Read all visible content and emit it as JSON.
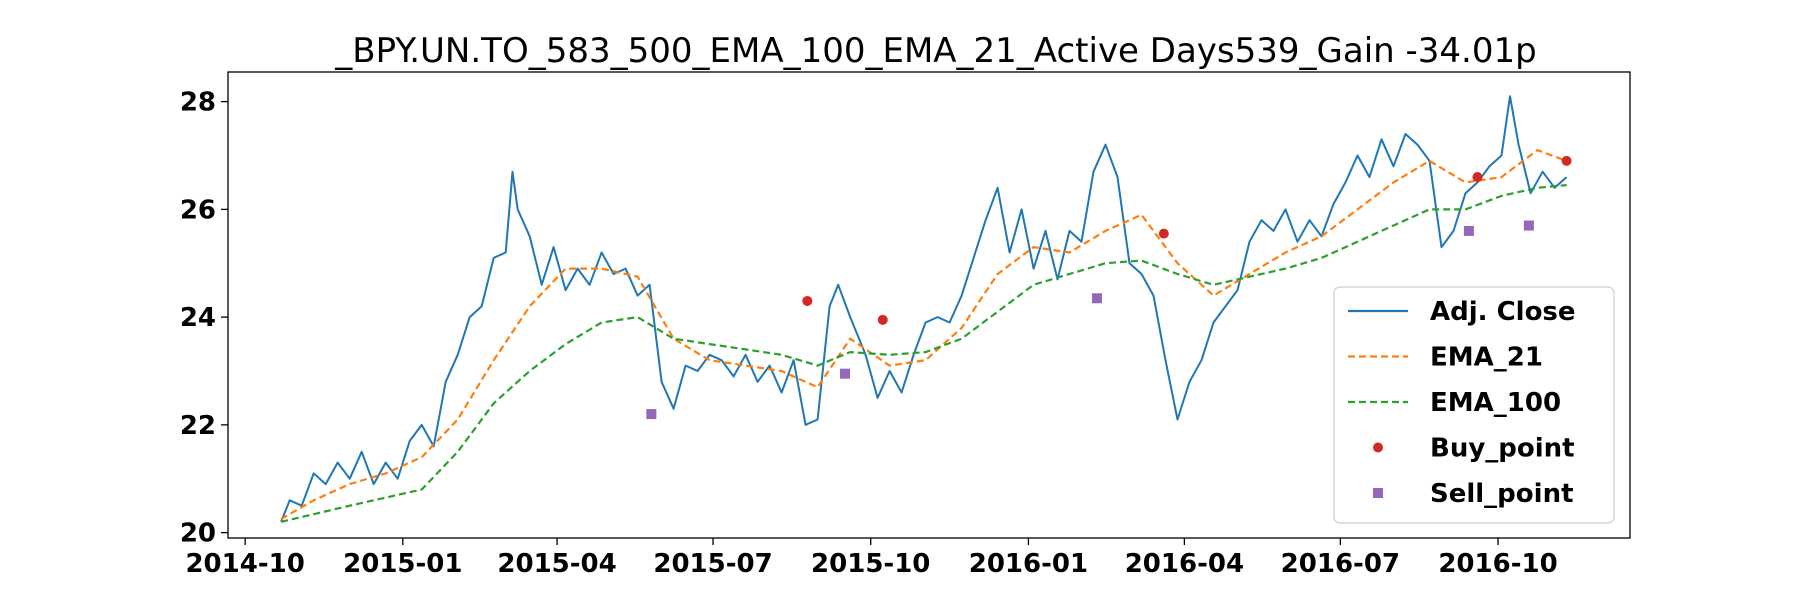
{
  "chart_data": {
    "type": "line",
    "title": "_BPY.UN.TO_583_500_EMA_100_EMA_21_Active Days539_Gain -34.01p",
    "xlabel": "",
    "ylabel": "",
    "x_axis": {
      "type": "date",
      "range": [
        "2014-09-21",
        "2016-12-17"
      ],
      "ticks": [
        {
          "date": "2014-10-01",
          "label": "2014-10"
        },
        {
          "date": "2015-01-01",
          "label": "2015-01"
        },
        {
          "date": "2015-04-01",
          "label": "2015-04"
        },
        {
          "date": "2015-07-01",
          "label": "2015-07"
        },
        {
          "date": "2015-10-01",
          "label": "2015-10"
        },
        {
          "date": "2016-01-01",
          "label": "2016-01"
        },
        {
          "date": "2016-04-01",
          "label": "2016-04"
        },
        {
          "date": "2016-07-01",
          "label": "2016-07"
        },
        {
          "date": "2016-10-01",
          "label": "2016-10"
        }
      ]
    },
    "y_axis": {
      "range": [
        19.9,
        28.55
      ],
      "ticks": [
        20,
        22,
        24,
        26,
        28
      ]
    },
    "grid": false,
    "legend": {
      "placement": "lower-right"
    },
    "series": [
      {
        "name": "Adj. Close",
        "color": "#1f77b4",
        "style": "solid",
        "points": [
          [
            "2014-10-22",
            20.2
          ],
          [
            "2014-10-27",
            20.6
          ],
          [
            "2014-11-03",
            20.5
          ],
          [
            "2014-11-10",
            21.1
          ],
          [
            "2014-11-17",
            20.9
          ],
          [
            "2014-11-24",
            21.3
          ],
          [
            "2014-12-01",
            21.0
          ],
          [
            "2014-12-08",
            21.5
          ],
          [
            "2014-12-15",
            20.9
          ],
          [
            "2014-12-22",
            21.3
          ],
          [
            "2014-12-29",
            21.0
          ],
          [
            "2015-01-05",
            21.7
          ],
          [
            "2015-01-12",
            22.0
          ],
          [
            "2015-01-19",
            21.6
          ],
          [
            "2015-01-26",
            22.8
          ],
          [
            "2015-02-02",
            23.3
          ],
          [
            "2015-02-09",
            24.0
          ],
          [
            "2015-02-16",
            24.2
          ],
          [
            "2015-02-23",
            25.1
          ],
          [
            "2015-03-02",
            25.2
          ],
          [
            "2015-03-06",
            26.7
          ],
          [
            "2015-03-09",
            26.0
          ],
          [
            "2015-03-16",
            25.5
          ],
          [
            "2015-03-23",
            24.6
          ],
          [
            "2015-03-30",
            25.3
          ],
          [
            "2015-04-06",
            24.5
          ],
          [
            "2015-04-13",
            24.9
          ],
          [
            "2015-04-20",
            24.6
          ],
          [
            "2015-04-27",
            25.2
          ],
          [
            "2015-05-04",
            24.8
          ],
          [
            "2015-05-11",
            24.9
          ],
          [
            "2015-05-18",
            24.4
          ],
          [
            "2015-05-25",
            24.6
          ],
          [
            "2015-06-01",
            22.8
          ],
          [
            "2015-06-08",
            22.3
          ],
          [
            "2015-06-15",
            23.1
          ],
          [
            "2015-06-22",
            23.0
          ],
          [
            "2015-06-29",
            23.3
          ],
          [
            "2015-07-06",
            23.2
          ],
          [
            "2015-07-13",
            22.9
          ],
          [
            "2015-07-20",
            23.3
          ],
          [
            "2015-07-27",
            22.8
          ],
          [
            "2015-08-03",
            23.1
          ],
          [
            "2015-08-10",
            22.6
          ],
          [
            "2015-08-17",
            23.2
          ],
          [
            "2015-08-24",
            22.0
          ],
          [
            "2015-08-31",
            22.1
          ],
          [
            "2015-09-07",
            24.2
          ],
          [
            "2015-09-12",
            24.6
          ],
          [
            "2015-09-19",
            24.0
          ],
          [
            "2015-09-28",
            23.3
          ],
          [
            "2015-10-05",
            22.5
          ],
          [
            "2015-10-12",
            23.0
          ],
          [
            "2015-10-19",
            22.6
          ],
          [
            "2015-10-26",
            23.3
          ],
          [
            "2015-11-02",
            23.9
          ],
          [
            "2015-11-09",
            24.0
          ],
          [
            "2015-11-16",
            23.9
          ],
          [
            "2015-11-23",
            24.4
          ],
          [
            "2015-11-30",
            25.1
          ],
          [
            "2015-12-07",
            25.8
          ],
          [
            "2015-12-14",
            26.4
          ],
          [
            "2015-12-21",
            25.2
          ],
          [
            "2015-12-28",
            26.0
          ],
          [
            "2016-01-04",
            24.9
          ],
          [
            "2016-01-11",
            25.6
          ],
          [
            "2016-01-18",
            24.7
          ],
          [
            "2016-01-25",
            25.6
          ],
          [
            "2016-02-01",
            25.4
          ],
          [
            "2016-02-08",
            26.7
          ],
          [
            "2016-02-15",
            27.2
          ],
          [
            "2016-02-22",
            26.6
          ],
          [
            "2016-02-29",
            25.0
          ],
          [
            "2016-03-07",
            24.8
          ],
          [
            "2016-03-14",
            24.4
          ],
          [
            "2016-03-21",
            23.2
          ],
          [
            "2016-03-28",
            22.1
          ],
          [
            "2016-04-04",
            22.8
          ],
          [
            "2016-04-11",
            23.2
          ],
          [
            "2016-04-18",
            23.9
          ],
          [
            "2016-04-25",
            24.2
          ],
          [
            "2016-05-02",
            24.5
          ],
          [
            "2016-05-09",
            25.4
          ],
          [
            "2016-05-16",
            25.8
          ],
          [
            "2016-05-23",
            25.6
          ],
          [
            "2016-05-30",
            26.0
          ],
          [
            "2016-06-06",
            25.4
          ],
          [
            "2016-06-13",
            25.8
          ],
          [
            "2016-06-20",
            25.5
          ],
          [
            "2016-06-27",
            26.1
          ],
          [
            "2016-07-04",
            26.5
          ],
          [
            "2016-07-11",
            27.0
          ],
          [
            "2016-07-18",
            26.6
          ],
          [
            "2016-07-25",
            27.3
          ],
          [
            "2016-08-01",
            26.8
          ],
          [
            "2016-08-08",
            27.4
          ],
          [
            "2016-08-15",
            27.2
          ],
          [
            "2016-08-22",
            26.9
          ],
          [
            "2016-08-29",
            25.3
          ],
          [
            "2016-09-05",
            25.6
          ],
          [
            "2016-09-12",
            26.3
          ],
          [
            "2016-09-19",
            26.5
          ],
          [
            "2016-09-26",
            26.8
          ],
          [
            "2016-10-03",
            27.0
          ],
          [
            "2016-10-08",
            28.1
          ],
          [
            "2016-10-13",
            27.2
          ],
          [
            "2016-10-20",
            26.3
          ],
          [
            "2016-10-27",
            26.7
          ],
          [
            "2016-11-03",
            26.4
          ],
          [
            "2016-11-10",
            26.6
          ]
        ]
      },
      {
        "name": "EMA_21",
        "color": "#ff7f0e",
        "style": "dashed",
        "points": [
          [
            "2014-10-22",
            20.25
          ],
          [
            "2014-11-10",
            20.6
          ],
          [
            "2014-12-01",
            20.9
          ],
          [
            "2014-12-22",
            21.1
          ],
          [
            "2015-01-12",
            21.4
          ],
          [
            "2015-02-02",
            22.1
          ],
          [
            "2015-02-23",
            23.2
          ],
          [
            "2015-03-16",
            24.2
          ],
          [
            "2015-04-06",
            24.9
          ],
          [
            "2015-04-27",
            24.9
          ],
          [
            "2015-05-18",
            24.75
          ],
          [
            "2015-06-08",
            23.6
          ],
          [
            "2015-06-29",
            23.2
          ],
          [
            "2015-07-20",
            23.1
          ],
          [
            "2015-08-10",
            23.0
          ],
          [
            "2015-08-31",
            22.7
          ],
          [
            "2015-09-19",
            23.6
          ],
          [
            "2015-10-12",
            23.1
          ],
          [
            "2015-11-02",
            23.2
          ],
          [
            "2015-11-23",
            23.8
          ],
          [
            "2015-12-14",
            24.8
          ],
          [
            "2016-01-04",
            25.3
          ],
          [
            "2016-01-25",
            25.2
          ],
          [
            "2016-02-15",
            25.6
          ],
          [
            "2016-03-07",
            25.9
          ],
          [
            "2016-03-28",
            25.0
          ],
          [
            "2016-04-18",
            24.4
          ],
          [
            "2016-05-09",
            24.8
          ],
          [
            "2016-05-30",
            25.2
          ],
          [
            "2016-06-20",
            25.5
          ],
          [
            "2016-07-11",
            26.0
          ],
          [
            "2016-08-01",
            26.5
          ],
          [
            "2016-08-22",
            26.9
          ],
          [
            "2016-09-12",
            26.5
          ],
          [
            "2016-10-03",
            26.6
          ],
          [
            "2016-10-24",
            27.1
          ],
          [
            "2016-11-10",
            26.9
          ]
        ]
      },
      {
        "name": "EMA_100",
        "color": "#2ca02c",
        "style": "dashed",
        "points": [
          [
            "2014-10-22",
            20.2
          ],
          [
            "2014-12-01",
            20.5
          ],
          [
            "2015-01-12",
            20.8
          ],
          [
            "2015-02-02",
            21.5
          ],
          [
            "2015-02-23",
            22.4
          ],
          [
            "2015-03-16",
            23.0
          ],
          [
            "2015-04-06",
            23.5
          ],
          [
            "2015-04-27",
            23.9
          ],
          [
            "2015-05-18",
            24.0
          ],
          [
            "2015-06-08",
            23.6
          ],
          [
            "2015-06-29",
            23.5
          ],
          [
            "2015-07-20",
            23.4
          ],
          [
            "2015-08-10",
            23.3
          ],
          [
            "2015-08-31",
            23.1
          ],
          [
            "2015-09-19",
            23.35
          ],
          [
            "2015-10-12",
            23.3
          ],
          [
            "2015-11-02",
            23.35
          ],
          [
            "2015-11-23",
            23.6
          ],
          [
            "2015-12-14",
            24.1
          ],
          [
            "2016-01-04",
            24.6
          ],
          [
            "2016-01-25",
            24.8
          ],
          [
            "2016-02-15",
            25.0
          ],
          [
            "2016-03-07",
            25.05
          ],
          [
            "2016-03-28",
            24.8
          ],
          [
            "2016-04-18",
            24.6
          ],
          [
            "2016-05-09",
            24.75
          ],
          [
            "2016-05-30",
            24.9
          ],
          [
            "2016-06-20",
            25.1
          ],
          [
            "2016-07-11",
            25.4
          ],
          [
            "2016-08-01",
            25.7
          ],
          [
            "2016-08-22",
            26.0
          ],
          [
            "2016-09-12",
            26.0
          ],
          [
            "2016-10-03",
            26.25
          ],
          [
            "2016-10-24",
            26.4
          ],
          [
            "2016-11-10",
            26.45
          ]
        ]
      }
    ],
    "markers": [
      {
        "name": "Buy_point",
        "color": "#d62728",
        "shape": "circle",
        "points": [
          [
            "2015-08-25",
            24.3
          ],
          [
            "2015-10-08",
            23.95
          ],
          [
            "2016-03-20",
            25.55
          ],
          [
            "2016-09-19",
            26.6
          ],
          [
            "2016-11-10",
            26.9
          ]
        ]
      },
      {
        "name": "Sell_point",
        "color": "#9467bd",
        "shape": "square",
        "points": [
          [
            "2015-05-26",
            22.2
          ],
          [
            "2015-09-16",
            22.95
          ],
          [
            "2016-02-10",
            24.35
          ],
          [
            "2016-09-14",
            25.6
          ],
          [
            "2016-10-19",
            25.7
          ]
        ]
      }
    ]
  }
}
